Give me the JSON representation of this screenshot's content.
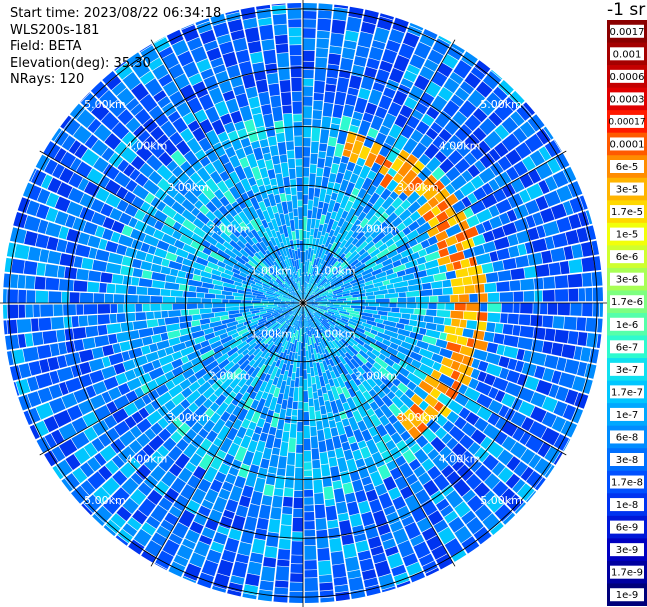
{
  "info": {
    "start_time": "Start time: 2023/08/22 06:34:18",
    "instrument": "WLS200s-181",
    "field": "Field: BETA",
    "elevation": "Elevation(deg): 35.30",
    "nrays": "NRays: 120"
  },
  "colorbar": {
    "title": "-1 sr",
    "labels": [
      "0.0017",
      "0.001",
      "0.0006",
      "0.0003",
      "0.00017",
      "0.0001",
      "6e-5",
      "3e-5",
      "1.7e-5",
      "1e-5",
      "6e-6",
      "3e-6",
      "1.7e-6",
      "1e-6",
      "6e-7",
      "3e-7",
      "1.7e-7",
      "1e-7",
      "6e-8",
      "3e-8",
      "1.7e-8",
      "1e-8",
      "6e-9",
      "3e-9",
      "1.7e-9",
      "1e-9"
    ],
    "colors": [
      "#8b0000",
      "#a50000",
      "#c40000",
      "#e00000",
      "#ff1a00",
      "#ff5a00",
      "#ff8c00",
      "#ffb400",
      "#ffd800",
      "#f2ff0a",
      "#cfff2e",
      "#a8ff55",
      "#7dff80",
      "#55ffaa",
      "#2efacf",
      "#10e0f0",
      "#00c6ff",
      "#00a8ff",
      "#008cff",
      "#0070ff",
      "#0050ff",
      "#0034f0",
      "#0018d8",
      "#0000c0",
      "#0000a0",
      "#00007a"
    ]
  },
  "chart_data": {
    "type": "heatmap",
    "projection": "polar (PPI scan)",
    "field": "BETA",
    "n_rays": 120,
    "range_ring_labels": [
      "1.00km",
      "2.00km",
      "3.00km",
      "4.00km",
      "5.00km"
    ],
    "range_rings_km": [
      1,
      2,
      3,
      4,
      5
    ],
    "max_range_km": 5.1,
    "spoke_count": 12,
    "background_level": "1e-7 to 1e-8 (blue/cyan)",
    "feature": {
      "description": "arc of enhanced backscatter",
      "range_km": [
        2.6,
        3.0
      ],
      "azimuth_from_deg": 15,
      "azimuth_to_deg": 140,
      "level": "1.7e-5 to 1e-4"
    }
  }
}
